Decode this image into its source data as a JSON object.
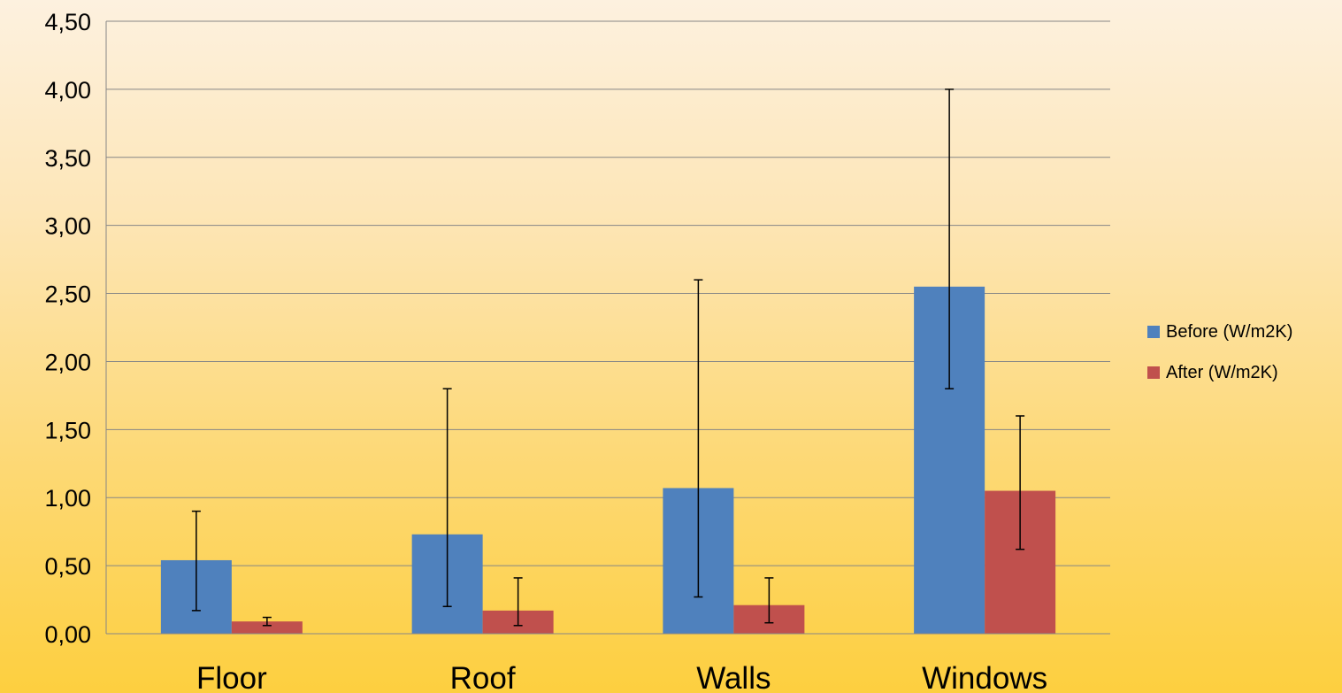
{
  "chart_data": {
    "type": "bar",
    "categories": [
      "Floor",
      "Roof",
      "Walls",
      "Windows"
    ],
    "series": [
      {
        "name": "Before (W/m2K)",
        "color": "#4f81bd",
        "values": [
          0.54,
          0.73,
          1.07,
          2.55
        ],
        "error_low": [
          0.17,
          0.2,
          0.27,
          1.8
        ],
        "error_high": [
          0.9,
          1.8,
          2.6,
          4.0
        ]
      },
      {
        "name": "After (W/m2K)",
        "color": "#c0504d",
        "values": [
          0.09,
          0.17,
          0.21,
          1.05
        ],
        "error_low": [
          0.06,
          0.06,
          0.08,
          0.62
        ],
        "error_high": [
          0.12,
          0.41,
          0.41,
          1.6
        ]
      }
    ],
    "ylim": [
      0,
      4.5
    ],
    "yticks": [
      "0,00",
      "0,50",
      "1,00",
      "1,50",
      "2,00",
      "2,50",
      "3,00",
      "3,50",
      "4,00",
      "4,50"
    ],
    "grid": true,
    "legend_position": "right"
  }
}
